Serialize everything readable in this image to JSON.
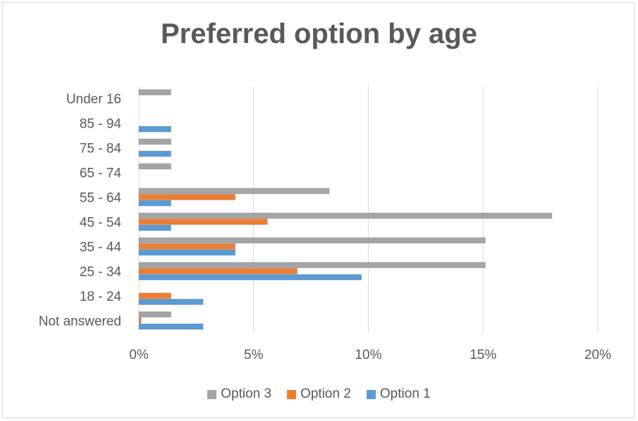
{
  "chart_data": {
    "type": "bar",
    "orientation": "horizontal",
    "title": "Preferred option by age",
    "xlabel": "",
    "ylabel": "",
    "xlim": [
      0,
      20
    ],
    "x_ticks": [
      "0%",
      "5%",
      "10%",
      "15%",
      "20%"
    ],
    "grid": true,
    "legend_position": "bottom",
    "categories": [
      "Not answered",
      "18 - 24",
      "25 - 34",
      "35 - 44",
      "45 - 54",
      "55 - 64",
      "65 - 74",
      "75 - 84",
      "85 - 94",
      "Under 16"
    ],
    "series": [
      {
        "name": "Option 1",
        "color": "#5b9bd5",
        "values": [
          2.8,
          2.8,
          9.7,
          4.2,
          1.4,
          1.4,
          0,
          1.4,
          1.4,
          0
        ]
      },
      {
        "name": "Option 2",
        "color": "#ed7d31",
        "values": [
          0.1,
          1.4,
          6.9,
          4.2,
          5.6,
          4.2,
          0,
          0,
          0,
          0
        ]
      },
      {
        "name": "Option 3",
        "color": "#a5a5a5",
        "values": [
          1.4,
          0,
          15.1,
          15.1,
          18.0,
          8.3,
          1.4,
          1.4,
          0,
          1.4
        ]
      }
    ]
  }
}
